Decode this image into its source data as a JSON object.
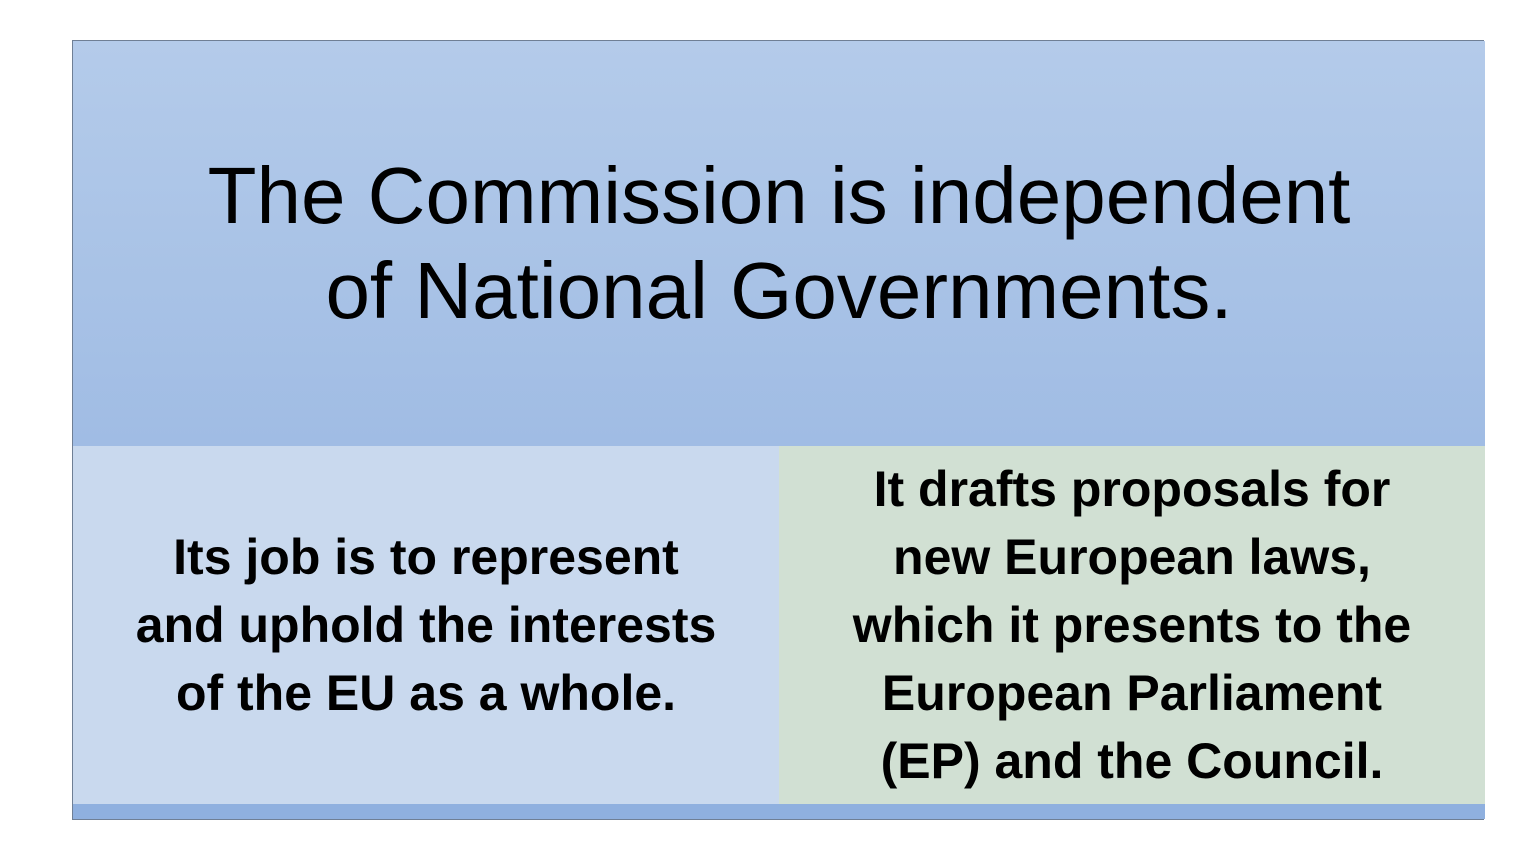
{
  "slide": {
    "title": "The Commission is independent\nof National Governments.",
    "left_box": "Its job is to represent\nand uphold the interests\nof the EU as a whole.",
    "right_box": "It drafts proposals for\nnew European laws,\nwhich it presents to the\nEuropean Parliament\n(EP) and the Council."
  },
  "colors": {
    "title_panel": "#a9c3e6",
    "left_panel": "#c9d9ee",
    "right_panel": "#d1e0d3",
    "bottom_band": "#8fb0df"
  }
}
